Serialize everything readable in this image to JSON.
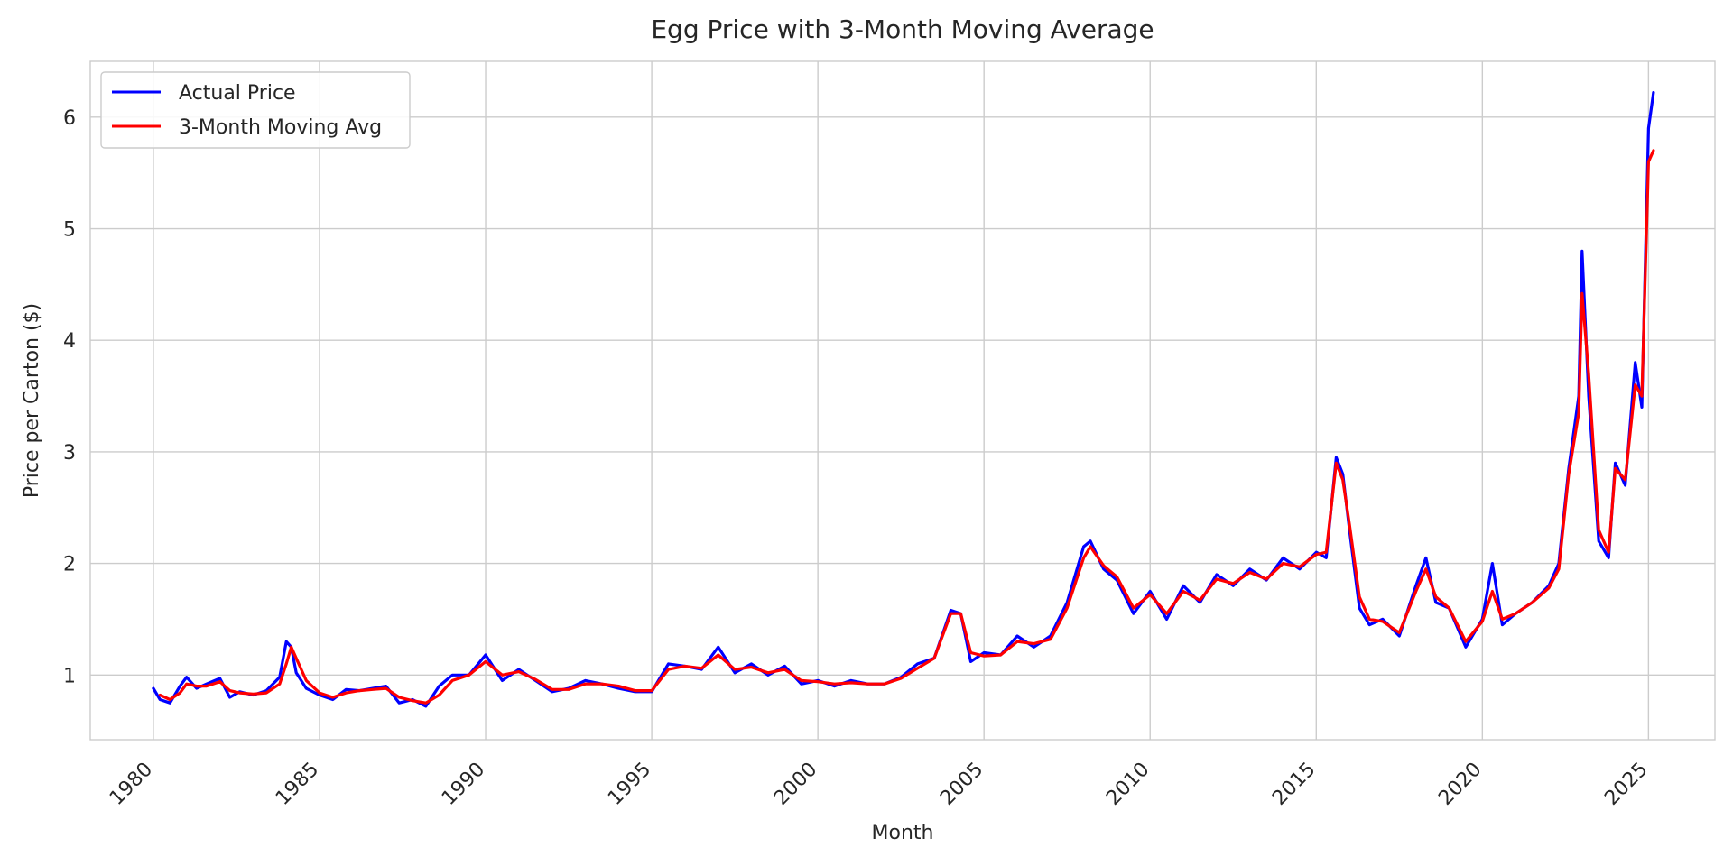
{
  "chart_data": {
    "type": "line",
    "title": "Egg Price with 3-Month Moving Average",
    "xlabel": "Month",
    "ylabel": "Price per Carton ($)",
    "xlim": [
      1978.1,
      2027.0
    ],
    "ylim": [
      0.42,
      6.5
    ],
    "x_ticks": [
      1980,
      1985,
      1990,
      1995,
      2000,
      2005,
      2010,
      2015,
      2020,
      2025
    ],
    "x_tick_labels": [
      "1980",
      "1985",
      "1990",
      "1995",
      "2000",
      "2005",
      "2010",
      "2015",
      "2020",
      "2025"
    ],
    "y_ticks": [
      1,
      2,
      3,
      4,
      5,
      6
    ],
    "y_tick_labels": [
      "1",
      "2",
      "3",
      "4",
      "5",
      "6"
    ],
    "grid": true,
    "legend_position": "top-left",
    "series": [
      {
        "name": "Actual Price",
        "color": "#0000ff",
        "x": [
          1980.0,
          1980.2,
          1980.5,
          1980.8,
          1981.0,
          1981.3,
          1981.6,
          1982.0,
          1982.3,
          1982.6,
          1983.0,
          1983.4,
          1983.8,
          1984.0,
          1984.15,
          1984.3,
          1984.6,
          1985.0,
          1985.4,
          1985.8,
          1986.2,
          1986.6,
          1987.0,
          1987.4,
          1987.8,
          1988.2,
          1988.6,
          1989.0,
          1989.5,
          1990.0,
          1990.5,
          1991.0,
          1991.5,
          1992.0,
          1992.5,
          1993.0,
          1993.5,
          1994.0,
          1994.5,
          1995.0,
          1995.5,
          1996.0,
          1996.5,
          1997.0,
          1997.5,
          1998.0,
          1998.5,
          1999.0,
          1999.5,
          2000.0,
          2000.5,
          2001.0,
          2001.5,
          2002.0,
          2002.5,
          2003.0,
          2003.5,
          2004.0,
          2004.3,
          2004.6,
          2005.0,
          2005.5,
          2006.0,
          2006.5,
          2007.0,
          2007.5,
          2008.0,
          2008.2,
          2008.6,
          2009.0,
          2009.5,
          2010.0,
          2010.5,
          2011.0,
          2011.5,
          2012.0,
          2012.5,
          2013.0,
          2013.5,
          2014.0,
          2014.5,
          2015.0,
          2015.3,
          2015.6,
          2015.8,
          2016.0,
          2016.3,
          2016.6,
          2017.0,
          2017.5,
          2018.0,
          2018.3,
          2018.6,
          2019.0,
          2019.5,
          2020.0,
          2020.3,
          2020.6,
          2021.0,
          2021.5,
          2022.0,
          2022.3,
          2022.6,
          2022.9,
          2023.0,
          2023.2,
          2023.5,
          2023.8,
          2024.0,
          2024.3,
          2024.6,
          2024.8,
          2025.0,
          2025.15
        ],
        "values": [
          0.88,
          0.78,
          0.75,
          0.9,
          0.98,
          0.88,
          0.92,
          0.97,
          0.8,
          0.85,
          0.82,
          0.86,
          0.98,
          1.3,
          1.25,
          1.02,
          0.88,
          0.82,
          0.78,
          0.87,
          0.86,
          0.88,
          0.9,
          0.75,
          0.78,
          0.72,
          0.9,
          1.0,
          1.0,
          1.18,
          0.95,
          1.05,
          0.95,
          0.85,
          0.88,
          0.95,
          0.92,
          0.88,
          0.85,
          0.85,
          1.1,
          1.08,
          1.05,
          1.25,
          1.02,
          1.1,
          1.0,
          1.08,
          0.92,
          0.95,
          0.9,
          0.95,
          0.92,
          0.92,
          0.98,
          1.1,
          1.15,
          1.58,
          1.55,
          1.12,
          1.2,
          1.18,
          1.35,
          1.25,
          1.35,
          1.65,
          2.15,
          2.2,
          1.95,
          1.85,
          1.55,
          1.75,
          1.5,
          1.8,
          1.65,
          1.9,
          1.8,
          1.95,
          1.85,
          2.05,
          1.95,
          2.1,
          2.05,
          2.95,
          2.8,
          2.3,
          1.6,
          1.45,
          1.5,
          1.35,
          1.8,
          2.05,
          1.65,
          1.6,
          1.25,
          1.5,
          2.0,
          1.45,
          1.55,
          1.65,
          1.8,
          2.0,
          2.85,
          3.5,
          4.8,
          3.5,
          2.2,
          2.05,
          2.9,
          2.7,
          3.8,
          3.4,
          5.9,
          6.22
        ]
      },
      {
        "name": "3-Month Moving Avg",
        "color": "#ff0000",
        "x": [
          1980.2,
          1980.5,
          1980.8,
          1981.0,
          1981.3,
          1981.6,
          1982.0,
          1982.3,
          1982.6,
          1983.0,
          1983.4,
          1983.8,
          1984.0,
          1984.15,
          1984.3,
          1984.6,
          1985.0,
          1985.4,
          1985.8,
          1986.2,
          1986.6,
          1987.0,
          1987.4,
          1987.8,
          1988.2,
          1988.6,
          1989.0,
          1989.5,
          1990.0,
          1990.5,
          1991.0,
          1991.5,
          1992.0,
          1992.5,
          1993.0,
          1993.5,
          1994.0,
          1994.5,
          1995.0,
          1995.5,
          1996.0,
          1996.5,
          1997.0,
          1997.5,
          1998.0,
          1998.5,
          1999.0,
          1999.5,
          2000.0,
          2000.5,
          2001.0,
          2001.5,
          2002.0,
          2002.5,
          2003.0,
          2003.5,
          2004.0,
          2004.3,
          2004.6,
          2005.0,
          2005.5,
          2006.0,
          2006.5,
          2007.0,
          2007.5,
          2008.0,
          2008.2,
          2008.6,
          2009.0,
          2009.5,
          2010.0,
          2010.5,
          2011.0,
          2011.5,
          2012.0,
          2012.5,
          2013.0,
          2013.5,
          2014.0,
          2014.5,
          2015.0,
          2015.3,
          2015.6,
          2015.8,
          2016.0,
          2016.3,
          2016.6,
          2017.0,
          2017.5,
          2018.0,
          2018.3,
          2018.6,
          2019.0,
          2019.5,
          2020.0,
          2020.3,
          2020.6,
          2021.0,
          2021.5,
          2022.0,
          2022.3,
          2022.6,
          2022.9,
          2023.0,
          2023.2,
          2023.5,
          2023.8,
          2024.0,
          2024.3,
          2024.6,
          2024.8,
          2025.0,
          2025.15
        ],
        "values": [
          0.82,
          0.78,
          0.84,
          0.92,
          0.9,
          0.9,
          0.94,
          0.86,
          0.84,
          0.83,
          0.84,
          0.92,
          1.1,
          1.25,
          1.15,
          0.95,
          0.84,
          0.8,
          0.84,
          0.86,
          0.87,
          0.88,
          0.8,
          0.77,
          0.75,
          0.82,
          0.95,
          1.0,
          1.12,
          1.0,
          1.03,
          0.96,
          0.87,
          0.87,
          0.92,
          0.92,
          0.9,
          0.86,
          0.86,
          1.05,
          1.08,
          1.06,
          1.18,
          1.05,
          1.07,
          1.02,
          1.05,
          0.95,
          0.94,
          0.92,
          0.93,
          0.92,
          0.92,
          0.97,
          1.06,
          1.15,
          1.55,
          1.55,
          1.2,
          1.17,
          1.18,
          1.3,
          1.28,
          1.32,
          1.6,
          2.05,
          2.15,
          1.98,
          1.88,
          1.6,
          1.72,
          1.55,
          1.75,
          1.67,
          1.86,
          1.82,
          1.92,
          1.86,
          2.0,
          1.97,
          2.08,
          2.1,
          2.9,
          2.75,
          2.35,
          1.7,
          1.5,
          1.48,
          1.38,
          1.75,
          1.95,
          1.7,
          1.6,
          1.3,
          1.48,
          1.75,
          1.5,
          1.55,
          1.65,
          1.78,
          1.95,
          2.8,
          3.35,
          4.42,
          3.7,
          2.3,
          2.1,
          2.85,
          2.75,
          3.6,
          3.5,
          5.6,
          5.7
        ]
      }
    ]
  }
}
